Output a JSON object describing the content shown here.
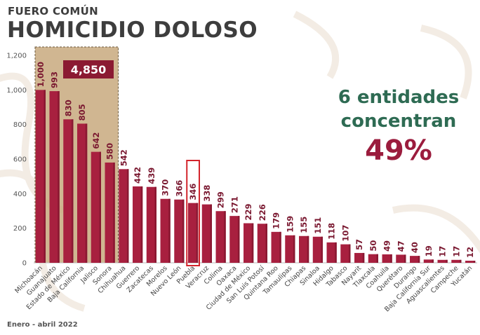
{
  "header": {
    "subtitle": "FUERO COMÚN",
    "title": "HOMICIDIO DOLOSO"
  },
  "callout": {
    "line1": "6 entidades",
    "line2": "concentran",
    "percent": "49%"
  },
  "footer": {
    "period": "Enero - abril 2022"
  },
  "colors": {
    "bar": "#a8203f",
    "bar_dark": "#8a1832",
    "highlight_box": "#c8a97e",
    "total_badge": "#8b1a32",
    "callout_green": "#2e6b53",
    "callout_red": "#9b1c3d",
    "puebla_outline": "#d3242c"
  },
  "chart_data": {
    "type": "bar",
    "title": "HOMICIDIO DOLOSO",
    "xlabel": "",
    "ylabel": "",
    "ylim": [
      0,
      1200
    ],
    "yticks": [
      0,
      200,
      400,
      600,
      800,
      1000,
      1200
    ],
    "ytick_labels": [
      "0",
      "200",
      "400",
      "600",
      "800",
      "1,000",
      "1,200"
    ],
    "grid": false,
    "categories": [
      "Michoacán",
      "Guanajuato",
      "Estado de México",
      "Baja California",
      "Jalisco",
      "Sonora",
      "Chihuahua",
      "Guerrero",
      "Zacatecas",
      "Morelos",
      "Nuevo León",
      "Puebla",
      "Veracruz",
      "Colima",
      "Oaxaca",
      "Ciudad de México",
      "San Luis Potosí",
      "Quintana Roo",
      "Tamaulipas",
      "Chiapas",
      "Sinaloa",
      "Hidalgo",
      "Tabasco",
      "Nayarit",
      "Tlaxcala",
      "Coahuila",
      "Querétaro",
      "Durango",
      "Baja California Sur",
      "Aguascalientes",
      "Campeche",
      "Yucatán"
    ],
    "values": [
      1000,
      993,
      830,
      805,
      642,
      580,
      542,
      442,
      439,
      370,
      366,
      346,
      338,
      299,
      271,
      229,
      226,
      179,
      159,
      155,
      151,
      118,
      107,
      57,
      50,
      49,
      47,
      40,
      19,
      17,
      17,
      12
    ],
    "value_labels": [
      "1,000",
      "993",
      "830",
      "805",
      "642",
      "580",
      "542",
      "442",
      "439",
      "370",
      "366",
      "346",
      "338",
      "299",
      "271",
      "229",
      "226",
      "179",
      "159",
      "155",
      "151",
      "118",
      "107",
      "57",
      "50",
      "49",
      "47",
      "40",
      "19",
      "17",
      "17",
      "12"
    ],
    "highlight_group": {
      "count": 6,
      "total_label": "4,850"
    },
    "highlighted_category": "Puebla"
  }
}
